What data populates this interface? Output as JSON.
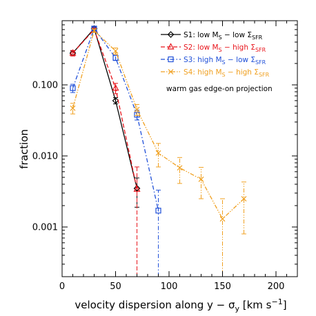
{
  "chart_data": {
    "type": "line",
    "xlabel_main": "velocity dispersion along y − σ",
    "xlabel_sub": "y",
    "xlabel_unit_open": " [km s",
    "xlabel_unit_sup": "−1",
    "xlabel_unit_close": "]",
    "ylabel": "fraction",
    "y_scale": "log",
    "xlim": [
      0,
      220
    ],
    "ylim": [
      0.0002,
      0.8
    ],
    "x_ticks": [
      0,
      50,
      100,
      150,
      200
    ],
    "x_tick_labels": [
      "0",
      "50",
      "100",
      "150",
      "200"
    ],
    "y_ticks": [
      0.001,
      0.01,
      0.1
    ],
    "y_tick_labels": [
      "0.001",
      "0.010",
      "0.100"
    ],
    "annotation": "warm gas edge-on projection",
    "legend_position": "top-right",
    "series": [
      {
        "legend_prefix": "S1: low M",
        "legend_sub1": "S",
        "legend_mid": " − low Σ",
        "legend_sub2": "SFR",
        "color": "#000000",
        "dash": "",
        "marker": "diamond",
        "x": [
          10,
          30,
          50,
          70
        ],
        "y": [
          0.28,
          0.62,
          0.06,
          0.0035
        ],
        "yerr_lo": [
          0.02,
          0.03,
          0.006,
          0.0016
        ],
        "yerr_hi": [
          0.02,
          0.03,
          0.006,
          0.0014
        ]
      },
      {
        "legend_prefix": "S2: low M",
        "legend_sub1": "S",
        "legend_mid": " − high Σ",
        "legend_sub2": "SFR",
        "color": "#e8141b",
        "dash": "6,3",
        "marker": "triangle",
        "x": [
          10,
          30,
          50,
          70
        ],
        "y": [
          0.28,
          0.6,
          0.09,
          0.0034
        ],
        "yerr_lo": [
          0.025,
          0.03,
          0.015,
          0.003399
        ],
        "yerr_hi": [
          0.025,
          0.03,
          0.015,
          0.0036
        ]
      },
      {
        "legend_prefix": "S3: high M",
        "legend_sub1": "S",
        "legend_mid": " − low Σ",
        "legend_sub2": "SFR",
        "color": "#1f4fd8",
        "dash": "6,3,1.5,3",
        "marker": "square",
        "x": [
          10,
          30,
          50,
          70,
          90
        ],
        "y": [
          0.09,
          0.62,
          0.24,
          0.038,
          0.0017
        ],
        "yerr_lo": [
          0.012,
          0.03,
          0.02,
          0.006,
          0.001699
        ],
        "yerr_hi": [
          0.012,
          0.03,
          0.02,
          0.006,
          0.0016
        ]
      },
      {
        "legend_prefix": "S4: high M",
        "legend_sub1": "S",
        "legend_mid": " − high Σ",
        "legend_sub2": "SFR",
        "color": "#f0a020",
        "dash": "6,2,1.5,2,1.5,2",
        "marker": "x",
        "x": [
          10,
          30,
          50,
          70,
          90,
          110,
          130,
          150,
          170
        ],
        "y": [
          0.047,
          0.58,
          0.3,
          0.045,
          0.011,
          0.0068,
          0.0047,
          0.0013,
          0.0025
        ],
        "yerr_lo": [
          0.008,
          0.03,
          0.03,
          0.008,
          0.004,
          0.0027,
          0.0022,
          0.0012999,
          0.0017
        ],
        "yerr_hi": [
          0.008,
          0.03,
          0.03,
          0.008,
          0.004,
          0.0027,
          0.0022,
          0.0012,
          0.0018
        ]
      }
    ]
  }
}
